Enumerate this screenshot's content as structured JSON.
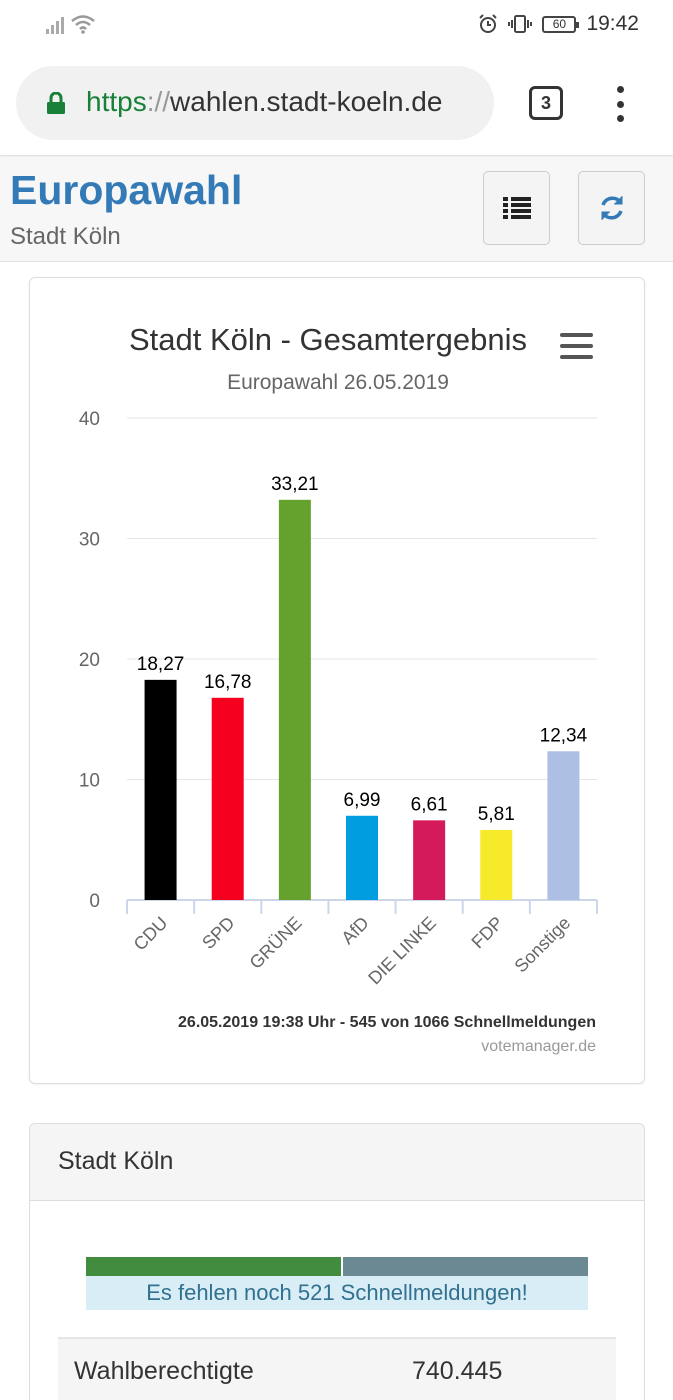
{
  "status_bar": {
    "time": "19:42",
    "battery": "60"
  },
  "browser": {
    "url_scheme": "https",
    "url_sep": "://",
    "url_host": "wahlen.stadt-koeln.de",
    "tab_count": "3"
  },
  "page": {
    "title": "Europawahl",
    "subtitle": "Stadt Köln"
  },
  "chart_data": {
    "type": "bar",
    "title": "Stadt Köln - Gesamtergebnis",
    "subtitle": "Europawahl 26.05.2019",
    "categories": [
      "CDU",
      "SPD",
      "GRÜNE",
      "AfD",
      "DIE LINKE",
      "FDP",
      "Sonstige"
    ],
    "values": [
      18.27,
      16.78,
      33.21,
      6.99,
      6.61,
      5.81,
      12.34
    ],
    "value_labels": [
      "18,27",
      "16,78",
      "33,21",
      "6,99",
      "6,61",
      "5,81",
      "12,34"
    ],
    "colors": [
      "#000000",
      "#f5001e",
      "#64a12d",
      "#009ee0",
      "#d41a5a",
      "#f7ea2a",
      "#adbfe3"
    ],
    "yticks": [
      0,
      10,
      20,
      30,
      40
    ],
    "ylim": [
      0,
      40
    ],
    "grid": true,
    "legend": "none",
    "credits_info": "26.05.2019 19:38 Uhr - 545 von 1066 Schnellmeldungen",
    "credits_link": "votemanager.de"
  },
  "panel": {
    "title": "Stadt Köln",
    "progress_fraction": 0.511,
    "progress_message": "Es fehlen noch 521 Schnellmeldungen!",
    "rows": [
      {
        "label": "Wahlberechtigte",
        "value": "740.445"
      }
    ]
  }
}
